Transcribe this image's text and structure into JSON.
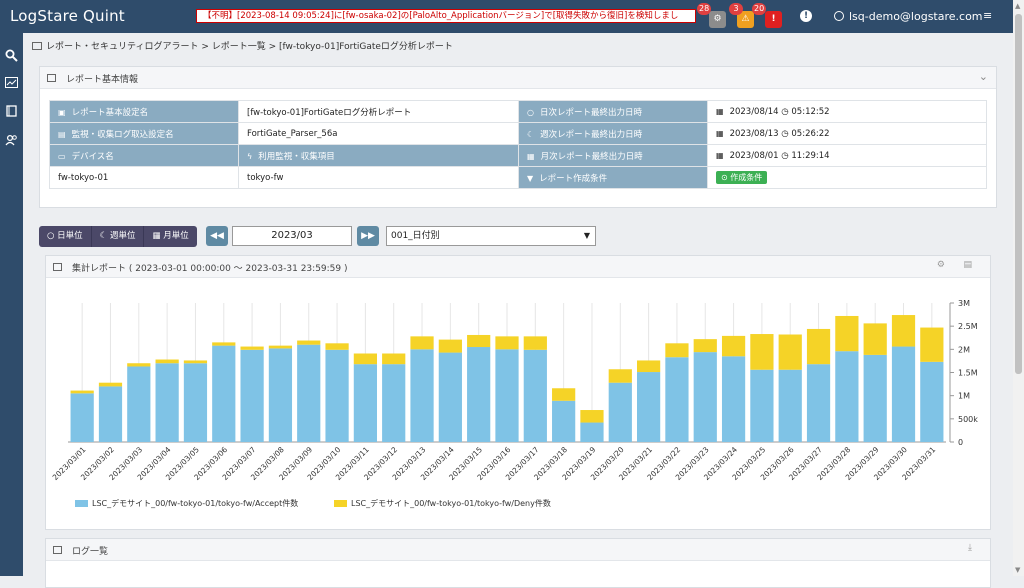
{
  "header": {
    "brand": "LogStare Quint",
    "alert_text": "【不明】[2023-08-14 09:05:24]に[fw-osaka-02]の[PaloAlto_Applicationバージョン]で[取得失敗から復旧]を検知しまし",
    "badges": [
      {
        "icon": "gear-icon",
        "count": "28",
        "color": "#8c8c8c"
      },
      {
        "icon": "warning-icon",
        "count": "3",
        "color": "#f0a020"
      },
      {
        "icon": "error-icon",
        "count": "20",
        "color": "#e02020"
      }
    ],
    "user": "lsq-demo@logstare.com",
    "menu_icon": "≡"
  },
  "sidebar": {
    "icons": [
      "search-icon",
      "chart-icon",
      "book-icon",
      "users-icon"
    ]
  },
  "breadcrumb": "レポート・セキュリティログアラート > レポート一覧 > [fw-tokyo-01]FortiGateログ分析レポート",
  "basic_info": {
    "title": "レポート基本情報",
    "rows": [
      {
        "k1": "レポート基本設定名",
        "v1": "[fw-tokyo-01]FortiGateログ分析レポート",
        "k2": "日次レポート最終出力日時",
        "v2a": "2023/08/14",
        "v2b": "05:12:52"
      },
      {
        "k1": "監視・収集ログ取込設定名",
        "v1": "FortiGate_Parser_56a",
        "k2": "週次レポート最終出力日時",
        "v2a": "2023/08/13",
        "v2b": "05:26:22"
      },
      {
        "k1": "デバイス名",
        "v1": "利用監視・収集項目",
        "k2": "月次レポート最終出力日時",
        "v2a": "2023/08/01",
        "v2b": "11:29:14"
      },
      {
        "k1": "fw-tokyo-01",
        "v1": "tokyo-fw",
        "k2": "レポート作成条件",
        "v2a": "作成条件",
        "v2b": ""
      }
    ]
  },
  "controls": {
    "daily": "日単位",
    "weekly": "週単位",
    "monthly": "月単位",
    "date": "2023/03",
    "period": "001_日付別",
    "prev": "◀◀",
    "next": "▶▶"
  },
  "chart_panel": {
    "title": "集計レポート ( 2023-03-01 00:00:00 ～ 2023-03-31 23:59:59 )"
  },
  "log_panel": {
    "title": "ログ一覧"
  },
  "chart_data": {
    "type": "bar",
    "stacked": true,
    "categories": [
      "2023/03/01",
      "2023/03/02",
      "2023/03/03",
      "2023/03/04",
      "2023/03/05",
      "2023/03/06",
      "2023/03/07",
      "2023/03/08",
      "2023/03/09",
      "2023/03/10",
      "2023/03/11",
      "2023/03/12",
      "2023/03/13",
      "2023/03/14",
      "2023/03/15",
      "2023/03/16",
      "2023/03/17",
      "2023/03/18",
      "2023/03/19",
      "2023/03/20",
      "2023/03/21",
      "2023/03/22",
      "2023/03/23",
      "2023/03/24",
      "2023/03/25",
      "2023/03/26",
      "2023/03/27",
      "2023/03/28",
      "2023/03/29",
      "2023/03/30",
      "2023/03/31"
    ],
    "series": [
      {
        "name": "LSC_デモサイト_00/fw-tokyo-01/tokyo-fw/Accept件数",
        "color": "#7fc3e6",
        "values": [
          1050000,
          1200000,
          1630000,
          1700000,
          1700000,
          2080000,
          1990000,
          2020000,
          2100000,
          1990000,
          1680000,
          1680000,
          2000000,
          1930000,
          2050000,
          2000000,
          1990000,
          890000,
          420000,
          1280000,
          1510000,
          1830000,
          1940000,
          1850000,
          1560000,
          1560000,
          1680000,
          1960000,
          1880000,
          2060000,
          1730000
        ]
      },
      {
        "name": "LSC_デモサイト_00/fw-tokyo-01/tokyo-fw/Deny件数",
        "color": "#f5d327",
        "values": [
          60000,
          80000,
          70000,
          80000,
          60000,
          70000,
          70000,
          60000,
          90000,
          140000,
          230000,
          230000,
          280000,
          280000,
          260000,
          280000,
          290000,
          270000,
          270000,
          290000,
          250000,
          300000,
          280000,
          440000,
          770000,
          760000,
          760000,
          760000,
          680000,
          680000,
          740000
        ]
      }
    ],
    "ylim": [
      0,
      3000000
    ],
    "yticks": [
      "0",
      "500k",
      "1M",
      "1.5M",
      "2M",
      "2.5M",
      "3M"
    ],
    "grid": true,
    "legend": "bottom-left"
  }
}
